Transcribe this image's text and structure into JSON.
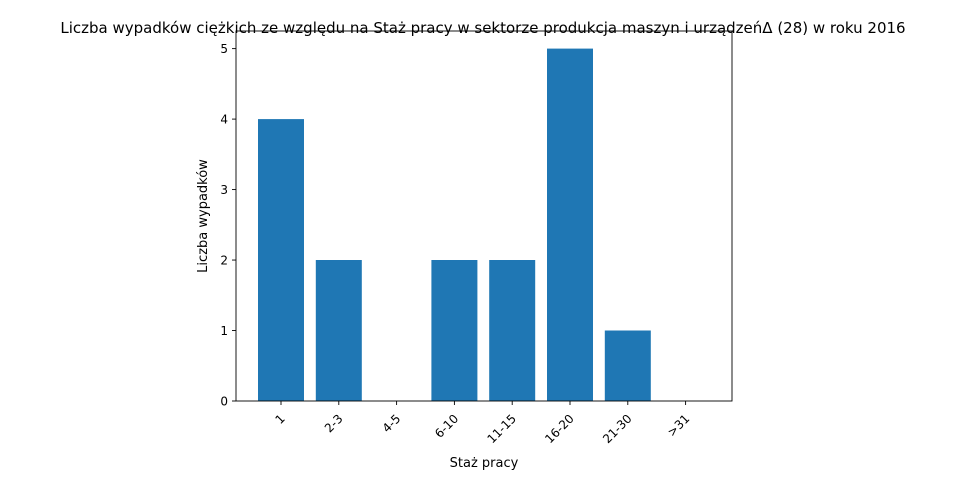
{
  "chart_data": {
    "type": "bar",
    "title": "Liczba wypadków ciężkich ze względu na Staż pracy w sektorze produkcja maszyn i urządzeńΔ (28)  w roku 2016",
    "xlabel": "Staż pracy",
    "ylabel": "Liczba wypadków",
    "categories": [
      "1",
      "2-3",
      "4-5",
      "6-10",
      "11-15",
      "16-20",
      "21-30",
      ">31"
    ],
    "values": [
      4,
      2,
      0,
      2,
      2,
      5,
      1,
      0
    ],
    "ylim": [
      0,
      5.25
    ],
    "yticks": [
      "0",
      "1",
      "2",
      "3",
      "4",
      "5"
    ],
    "bar_color": "#1f77b4",
    "grid": false,
    "legend": "none"
  }
}
